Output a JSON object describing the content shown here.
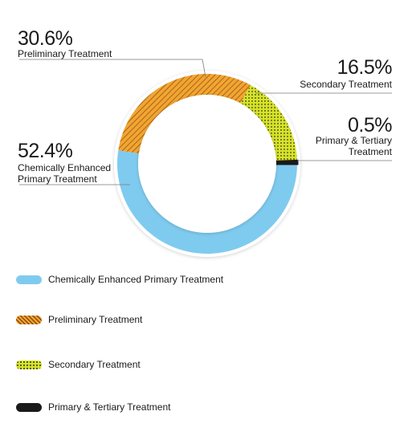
{
  "chart_data": {
    "type": "pie",
    "variant": "donut",
    "series": [
      {
        "name": "Chemically Enhanced Primary Treatment",
        "value": 52.4,
        "value_label": "52.4%",
        "label_lines": [
          "Chemically Enhanced",
          "Primary Treatment"
        ],
        "color": "#7fcbef",
        "pattern": "solid"
      },
      {
        "name": "Preliminary Treatment",
        "value": 30.6,
        "value_label": "30.6%",
        "label_lines": [
          "Preliminary Treatment"
        ],
        "color": "#f2a531",
        "pattern": "diagonal-hatch"
      },
      {
        "name": "Secondary Treatment",
        "value": 16.5,
        "value_label": "16.5%",
        "label_lines": [
          "Secondary Treatment"
        ],
        "color": "#d6e32a",
        "pattern": "dots"
      },
      {
        "name": "Primary & Tertiary Treatment",
        "value": 0.5,
        "value_label": "0.5%",
        "label_lines": [
          "Primary & Tertiary",
          "Treatment"
        ],
        "color": "#1a1a1a",
        "pattern": "solid"
      }
    ],
    "legend_position": "bottom-left"
  }
}
